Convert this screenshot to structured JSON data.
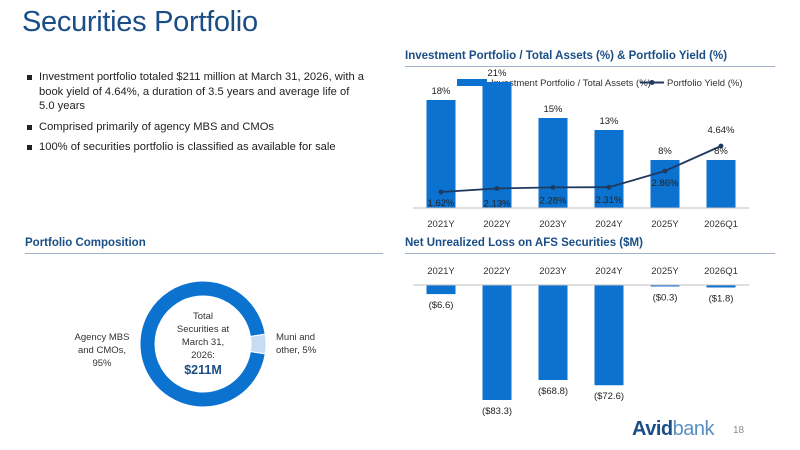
{
  "page": {
    "title": "Securities Portfolio",
    "page_number": "18",
    "logo": {
      "bold": "Avid",
      "light": "bank"
    }
  },
  "bullets": [
    "Investment portfolio totaled $211 million at March 31, 2026, with a book yield of 4.64%, a duration of 3.5 years and average life of 5.0 years",
    "Comprised primarily of agency MBS and CMOs",
    "100% of securities portfolio is classified as available for sale"
  ],
  "sections": {
    "composition": "Portfolio Composition",
    "portfolio_chart": "Investment Portfolio / Total Assets (%) & Portfolio Yield (%)",
    "loss_chart": "Net Unrealized Loss on AFS Securities ($M)"
  },
  "colors": {
    "primary": "#1a4e86",
    "bar": "#0b72d0",
    "line": "#1f3a5f",
    "muni": "#c6dcf2"
  },
  "chart_data": [
    {
      "type": "bar",
      "title": "Investment Portfolio / Total Assets (%) & Portfolio Yield (%)",
      "categories": [
        "2021Y",
        "2022Y",
        "2023Y",
        "2024Y",
        "2025Y",
        "2026Q1"
      ],
      "series": [
        {
          "name": "Investment Portfolio / Total Assets (%)",
          "type": "bar",
          "values": [
            18,
            21,
            15,
            13,
            8,
            8
          ],
          "labels": [
            "18%",
            "21%",
            "15%",
            "13%",
            "8%",
            "8%"
          ]
        },
        {
          "name": "Portfolio Yield (%)",
          "type": "line",
          "values": [
            1.62,
            2.13,
            2.28,
            2.31,
            2.86,
            4.64
          ],
          "labels": [
            "1.62%",
            "2.13%",
            "2.28%",
            "2.31%",
            "2.86%",
            "4.64%"
          ]
        }
      ],
      "legend": "top",
      "grid": false
    },
    {
      "type": "bar",
      "title": "Net Unrealized Loss on AFS Securities ($M)",
      "categories": [
        "2021Y",
        "2022Y",
        "2023Y",
        "2024Y",
        "2025Y",
        "2026Q1"
      ],
      "values": [
        -6.6,
        -83.3,
        -68.8,
        -72.6,
        -0.3,
        -1.8
      ],
      "labels": [
        "($6.6)",
        "($83.3)",
        "($68.8)",
        "($72.6)",
        "($0.3)",
        "($1.8)"
      ],
      "axis_position": "top",
      "grid": false
    },
    {
      "type": "pie",
      "title": "Portfolio Composition",
      "donut": true,
      "slices": [
        {
          "name": "Agency MBS and CMOs, 95%",
          "value": 95
        },
        {
          "name": "Muni and other, 5%",
          "value": 5
        }
      ],
      "center_text": [
        "Total",
        "Securities at",
        "March 31,",
        "2026:"
      ],
      "center_value": "$211M"
    }
  ]
}
